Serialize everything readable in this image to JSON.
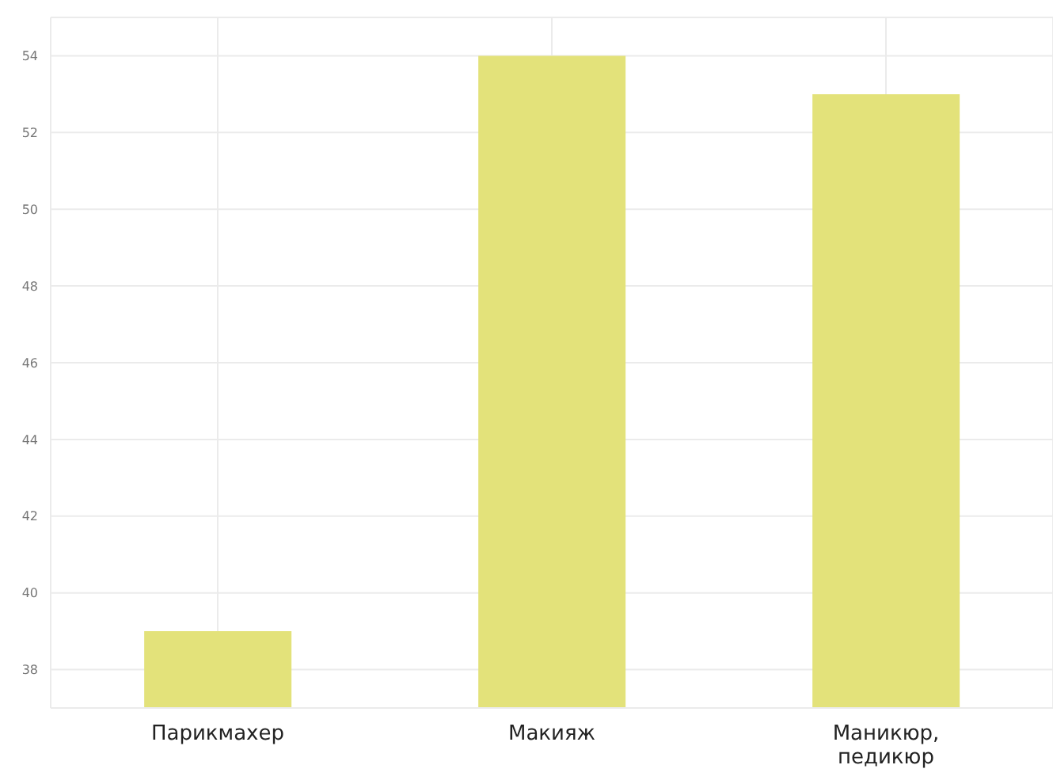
{
  "chart_data": {
    "type": "bar",
    "categories": [
      "Парикмахер",
      "Макияж",
      "Маникюр, педикюр"
    ],
    "values": [
      39,
      54,
      53
    ],
    "color": "#e3e27a",
    "ylim": [
      37,
      55
    ],
    "yticks": [
      38,
      40,
      42,
      44,
      46,
      48,
      50,
      52,
      54
    ],
    "grid": true
  }
}
